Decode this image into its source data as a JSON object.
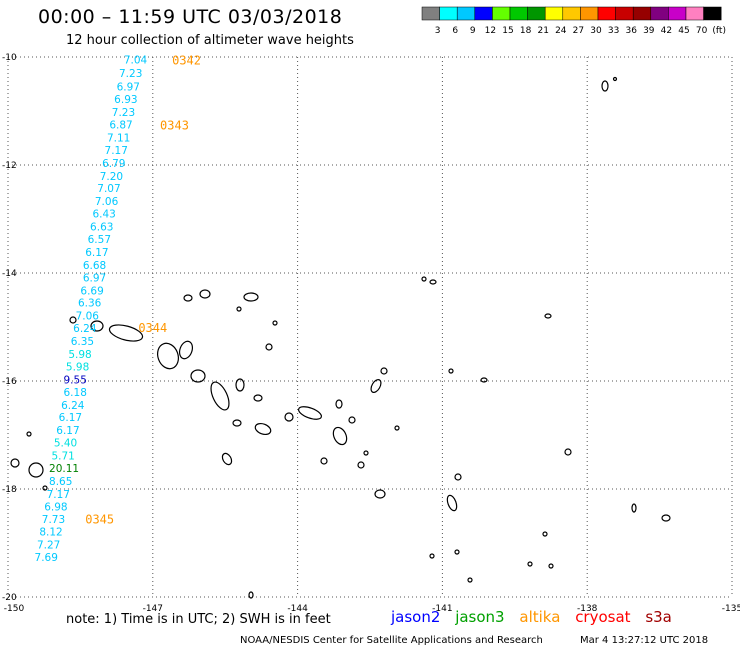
{
  "title": "00:00 – 11:59 UTC 03/03/2018",
  "subtitle": "12 hour collection of altimeter wave heights",
  "legend": {
    "colors": [
      "#808080",
      "#00ffff",
      "#00c8ff",
      "#0000ff",
      "#64ff00",
      "#00c800",
      "#009600",
      "#ffff00",
      "#ffc800",
      "#ff9600",
      "#ff0000",
      "#c80000",
      "#960000",
      "#800080",
      "#c800c8",
      "#ff80c0",
      "#000000"
    ],
    "labels": [
      "3",
      "6",
      "9",
      "12",
      "15",
      "18",
      "21",
      "24",
      "27",
      "30",
      "33",
      "36",
      "39",
      "42",
      "45",
      "70",
      "(ft)"
    ]
  },
  "map": {
    "lat_labels": [
      "-10",
      "-12",
      "-14",
      "-16",
      "-18",
      "-20"
    ],
    "lon_labels": [
      "-150",
      "-147",
      "-144",
      "-141",
      "-138",
      "-135"
    ]
  },
  "chart_data": {
    "type": "scatter",
    "title": "00:00 – 11:59 UTC 03/03/2018",
    "xlim": [
      -150,
      -135
    ],
    "ylim": [
      -20,
      -10
    ],
    "grid": true,
    "time_marks": [
      {
        "label": "0342",
        "lon": -146.6,
        "lat": -10.05
      },
      {
        "label": "0343",
        "lon": -146.85,
        "lat": -11.25
      },
      {
        "label": "0344",
        "lon": -147.3,
        "lat": -15.0
      },
      {
        "label": "0345",
        "lon": -148.4,
        "lat": -18.55
      }
    ],
    "points": [
      {
        "v": "7.04",
        "lon": -147.6,
        "lat": -10.05,
        "c": "#00c8ff"
      },
      {
        "v": "7.23",
        "lon": -147.7,
        "lat": -10.3,
        "c": "#00c8ff"
      },
      {
        "v": "6.97",
        "lon": -147.75,
        "lat": -10.55,
        "c": "#00c8ff"
      },
      {
        "v": "6.93",
        "lon": -147.8,
        "lat": -10.78,
        "c": "#00c8ff"
      },
      {
        "v": "7.23",
        "lon": -147.85,
        "lat": -11.02,
        "c": "#00c8ff"
      },
      {
        "v": "6.87",
        "lon": -147.9,
        "lat": -11.25,
        "c": "#00c8ff"
      },
      {
        "v": "7.11",
        "lon": -147.95,
        "lat": -11.49,
        "c": "#00c8ff"
      },
      {
        "v": "7.17",
        "lon": -148.0,
        "lat": -11.72,
        "c": "#00c8ff"
      },
      {
        "v": "6.79",
        "lon": -148.05,
        "lat": -11.96,
        "c": "#00c8ff"
      },
      {
        "v": "7.20",
        "lon": -148.1,
        "lat": -12.2,
        "c": "#00c8ff"
      },
      {
        "v": "7.07",
        "lon": -148.15,
        "lat": -12.43,
        "c": "#00c8ff"
      },
      {
        "v": "7.06",
        "lon": -148.2,
        "lat": -12.67,
        "c": "#00c8ff"
      },
      {
        "v": "6.43",
        "lon": -148.25,
        "lat": -12.9,
        "c": "#00c8ff"
      },
      {
        "v": "6.63",
        "lon": -148.3,
        "lat": -13.14,
        "c": "#00c8ff"
      },
      {
        "v": "6.57",
        "lon": -148.35,
        "lat": -13.37,
        "c": "#00c8ff"
      },
      {
        "v": "6.17",
        "lon": -148.4,
        "lat": -13.61,
        "c": "#00c8ff"
      },
      {
        "v": "6.68",
        "lon": -148.45,
        "lat": -13.85,
        "c": "#00c8ff"
      },
      {
        "v": "6.97",
        "lon": -148.45,
        "lat": -14.08,
        "c": "#00c8ff"
      },
      {
        "v": "6.69",
        "lon": -148.5,
        "lat": -14.32,
        "c": "#00c8ff"
      },
      {
        "v": "6.36",
        "lon": -148.55,
        "lat": -14.55,
        "c": "#00c8ff"
      },
      {
        "v": "7.06",
        "lon": -148.6,
        "lat": -14.79,
        "c": "#00c8ff"
      },
      {
        "v": "6.24",
        "lon": -148.65,
        "lat": -15.02,
        "c": "#00c8ff"
      },
      {
        "v": "6.35",
        "lon": -148.7,
        "lat": -15.26,
        "c": "#00c8ff"
      },
      {
        "v": "5.98",
        "lon": -148.75,
        "lat": -15.5,
        "c": "#00e0e0"
      },
      {
        "v": "5.98",
        "lon": -148.8,
        "lat": -15.73,
        "c": "#00e0e0"
      },
      {
        "v": "9.55",
        "lon": -148.85,
        "lat": -15.97,
        "c": "#0000c0"
      },
      {
        "v": "6.18",
        "lon": -148.85,
        "lat": -16.2,
        "c": "#00c8ff"
      },
      {
        "v": "6.24",
        "lon": -148.9,
        "lat": -16.44,
        "c": "#00c8ff"
      },
      {
        "v": "6.17",
        "lon": -148.95,
        "lat": -16.67,
        "c": "#00c8ff"
      },
      {
        "v": "6.17",
        "lon": -149.0,
        "lat": -16.91,
        "c": "#00c8ff"
      },
      {
        "v": "5.40",
        "lon": -149.05,
        "lat": -17.14,
        "c": "#00e0e0"
      },
      {
        "v": "5.71",
        "lon": -149.1,
        "lat": -17.38,
        "c": "#00e0e0"
      },
      {
        "v": "20.11",
        "lon": -149.15,
        "lat": -17.61,
        "c": "#008000"
      },
      {
        "v": "8.65",
        "lon": -149.15,
        "lat": -17.85,
        "c": "#00c8ff"
      },
      {
        "v": "7.17",
        "lon": -149.2,
        "lat": -18.09,
        "c": "#00c8ff"
      },
      {
        "v": "6.98",
        "lon": -149.25,
        "lat": -18.32,
        "c": "#00c8ff"
      },
      {
        "v": "7.73",
        "lon": -149.3,
        "lat": -18.56,
        "c": "#00c8ff"
      },
      {
        "v": "8.12",
        "lon": -149.35,
        "lat": -18.79,
        "c": "#00c8ff"
      },
      {
        "v": "7.27",
        "lon": -149.4,
        "lat": -19.03,
        "c": "#00c8ff"
      },
      {
        "v": "7.69",
        "lon": -149.45,
        "lat": -19.26,
        "c": "#00c8ff"
      }
    ]
  },
  "note": "note: 1) Time is in UTC; 2) SWH is in feet",
  "satellites": [
    {
      "name": "jason2",
      "color": "#0000ff"
    },
    {
      "name": "jason3",
      "color": "#00a000"
    },
    {
      "name": "altika",
      "color": "#ff9600"
    },
    {
      "name": "cryosat",
      "color": "#ff0000"
    },
    {
      "name": "s3a",
      "color": "#a00000"
    }
  ],
  "footer": {
    "credit": "NOAA/NESDIS Center for Satellite Applications and Research",
    "timestamp": "Mar  4 13:27:12 UTC 2018"
  }
}
